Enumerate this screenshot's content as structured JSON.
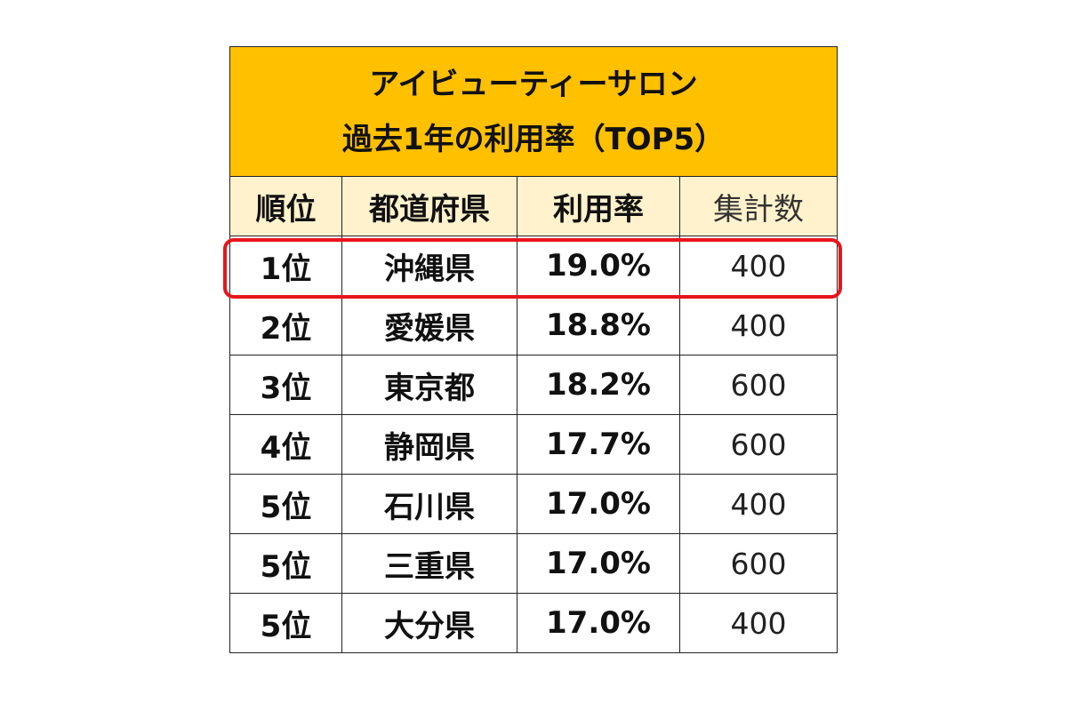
{
  "table": {
    "title_line1": "アイビューティーサロン",
    "title_line2": "過去1年の利用率（TOP5）",
    "headers": [
      "順位",
      "都道府県",
      "利用率",
      "集計数"
    ],
    "rows": [
      {
        "rank": "1位",
        "prefecture": "沖縄県",
        "rate": "19.0%",
        "count": "400"
      },
      {
        "rank": "2位",
        "prefecture": "愛媛県",
        "rate": "18.8%",
        "count": "400"
      },
      {
        "rank": "3位",
        "prefecture": "東京都",
        "rate": "18.2%",
        "count": "600"
      },
      {
        "rank": "4位",
        "prefecture": "静岡県",
        "rate": "17.7%",
        "count": "600"
      },
      {
        "rank": "5位",
        "prefecture": "石川県",
        "rate": "17.0%",
        "count": "400"
      },
      {
        "rank": "5位",
        "prefecture": "三重県",
        "rate": "17.0%",
        "count": "600"
      },
      {
        "rank": "5位",
        "prefecture": "大分県",
        "rate": "17.0%",
        "count": "400"
      }
    ],
    "colors": {
      "title_bg": "#FFC000",
      "header_bg": "#FFF2CC",
      "highlight": "#E8141B"
    }
  }
}
